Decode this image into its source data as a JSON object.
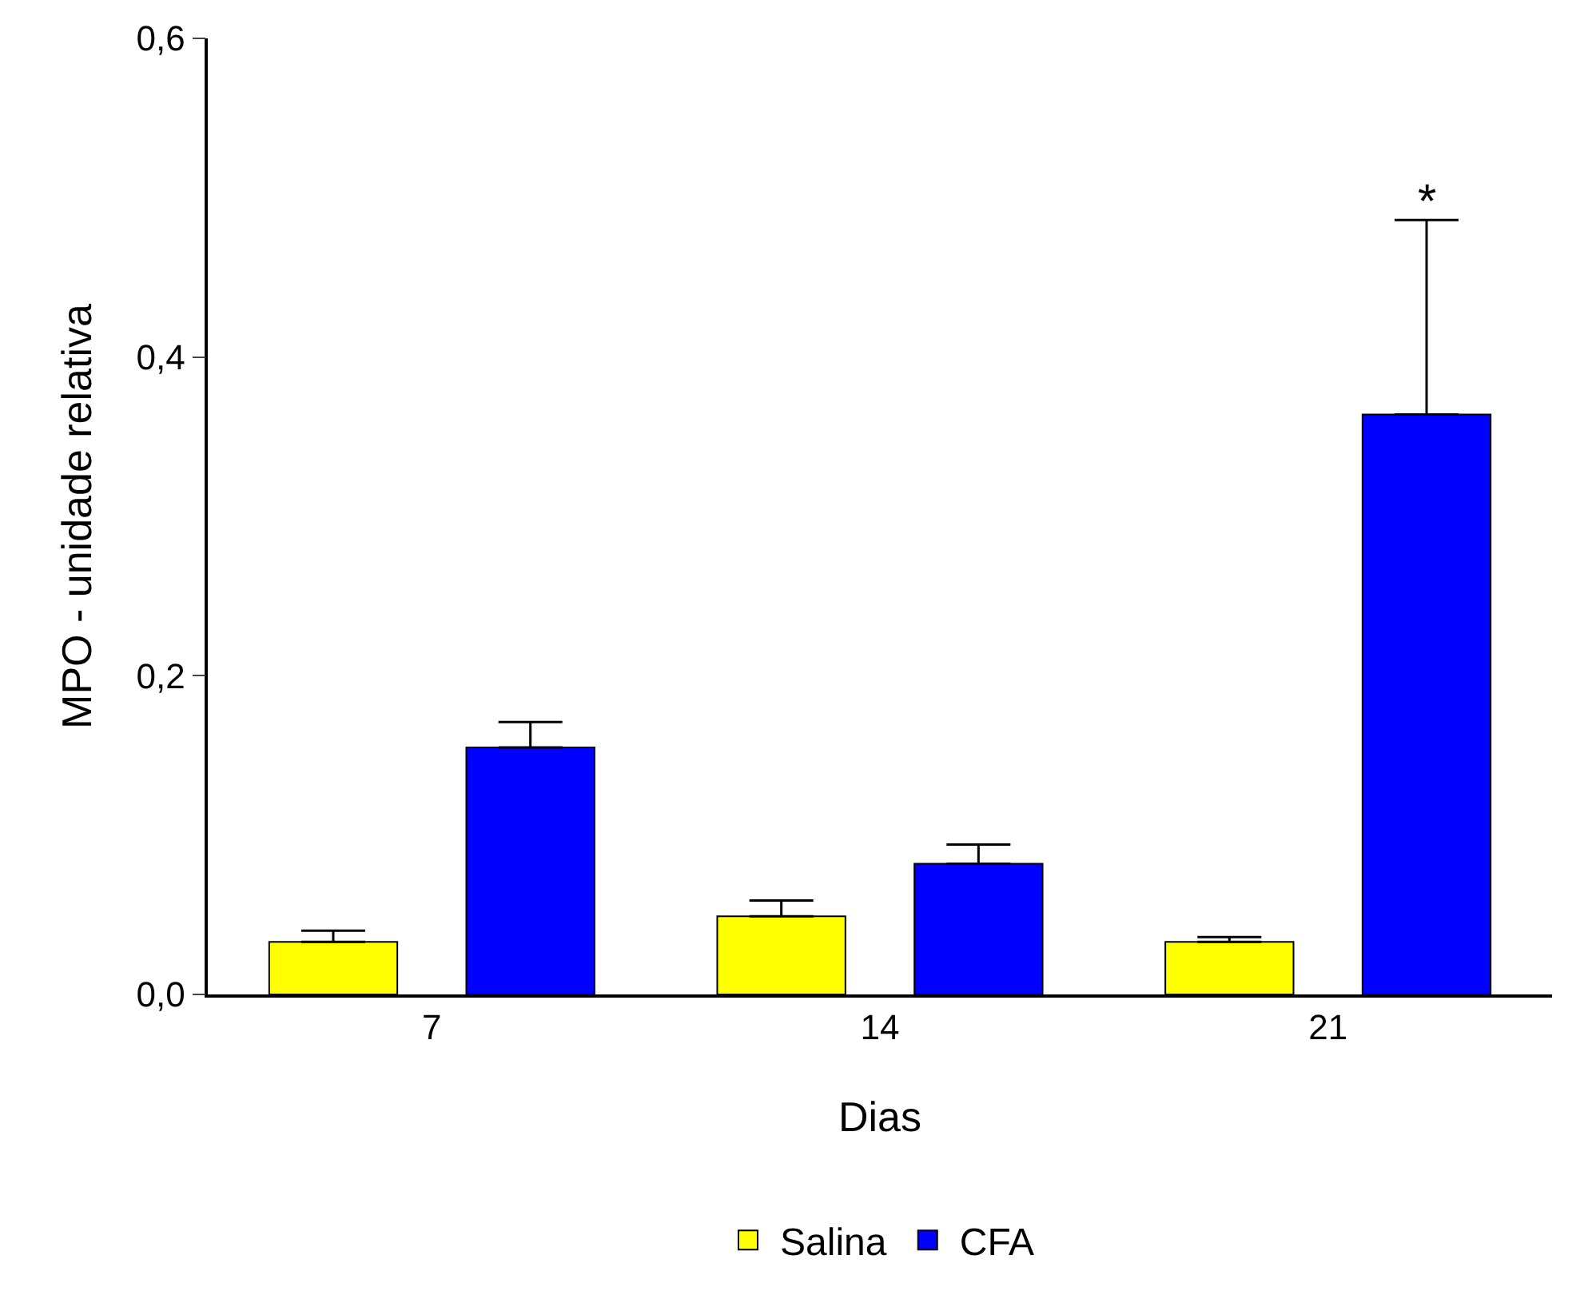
{
  "chart_data": {
    "type": "bar",
    "xlabel": "Dias",
    "ylabel": "MPO - unidade relativa",
    "categories": [
      "7",
      "14",
      "21"
    ],
    "series": [
      {
        "name": "Salina",
        "color": "#ffff00",
        "values": [
          0.033,
          0.049,
          0.033
        ],
        "errors": [
          [
            0.033,
            0.04
          ],
          [
            0.049,
            0.059
          ],
          [
            0.033,
            0.036
          ]
        ]
      },
      {
        "name": "CFA",
        "color": "#0000ff",
        "values": [
          0.155,
          0.082,
          0.364
        ],
        "errors": [
          [
            0.155,
            0.171
          ],
          [
            0.082,
            0.094
          ],
          [
            0.364,
            0.486
          ]
        ]
      }
    ],
    "ylim": [
      0,
      0.6
    ],
    "yticks": [
      {
        "value": 0,
        "label": "0,0"
      },
      {
        "value": 0.2,
        "label": "0,2"
      },
      {
        "value": 0.4,
        "label": "0,4"
      },
      {
        "value": 0.6,
        "label": "0,6"
      }
    ],
    "annotations": [
      "*"
    ],
    "legend": "bottom"
  }
}
